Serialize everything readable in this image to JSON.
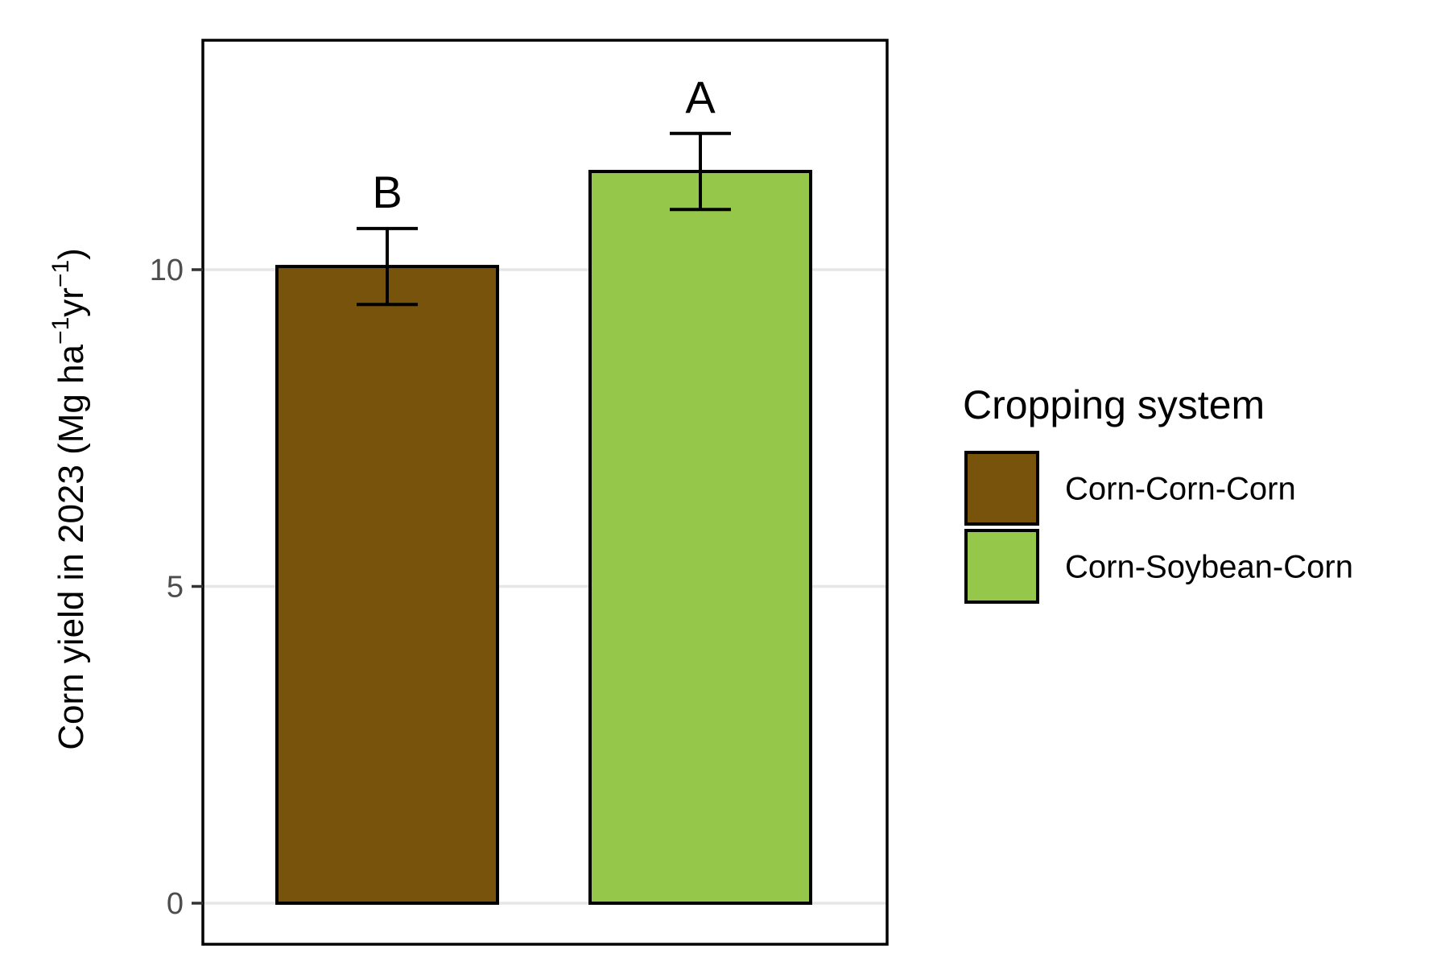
{
  "chart_data": {
    "type": "bar",
    "title": "",
    "xlabel": "",
    "ylabel": {
      "main": "Corn yield in 2023 (Mg ha",
      "sup1": "−1",
      "mid": "yr",
      "sup2": "−1",
      "end": ")"
    },
    "ylim": [
      -0.6,
      13.7
    ],
    "yticks": [
      0,
      5,
      10
    ],
    "ytick_labels": [
      "0",
      "5",
      "10"
    ],
    "grid": {
      "major_y": true,
      "x": false
    },
    "categories": [
      "Corn-Corn-Corn",
      "Corn-Soybean-Corn"
    ],
    "values": [
      10.05,
      11.55
    ],
    "error_low": [
      9.45,
      10.95
    ],
    "error_high": [
      10.65,
      12.15
    ],
    "significance_letters": [
      "B",
      "A"
    ],
    "colors": [
      "#77530b",
      "#95c74b"
    ],
    "legend": {
      "title": "Cropping system",
      "position": "right",
      "items": [
        "Corn-Corn-Corn",
        "Corn-Soybean-Corn"
      ]
    }
  }
}
